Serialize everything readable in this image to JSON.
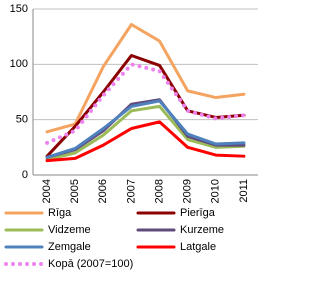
{
  "chart_data": {
    "type": "line",
    "categories": [
      "2004",
      "2005",
      "2006",
      "2007",
      "2008",
      "2009",
      "2010",
      "2011"
    ],
    "series": [
      {
        "name": "Rīga",
        "color": "#f4a460",
        "values": [
          39,
          46,
          98,
          136,
          121,
          76,
          70,
          73
        ]
      },
      {
        "name": "Pierīga",
        "color": "#8b0000",
        "values": [
          17,
          44,
          75,
          108,
          99,
          58,
          52,
          54
        ]
      },
      {
        "name": "Vidzeme",
        "color": "#9bbb59",
        "values": [
          14,
          20,
          36,
          58,
          62,
          32,
          25,
          26
        ]
      },
      {
        "name": "Kurzeme",
        "color": "#604a7b",
        "values": [
          16,
          23,
          40,
          64,
          68,
          35,
          27,
          27
        ]
      },
      {
        "name": "Zemgale",
        "color": "#4f81bd",
        "values": [
          16,
          24,
          42,
          62,
          67,
          37,
          28,
          29
        ]
      },
      {
        "name": "Latgale",
        "color": "#ff0000",
        "values": [
          13,
          15,
          27,
          42,
          48,
          25,
          18,
          17
        ]
      },
      {
        "name": "Kopā (2007=100)",
        "color": "#ee82ee",
        "line_style": "dotted",
        "values": [
          29,
          40,
          72,
          100,
          94,
          58,
          51,
          54
        ]
      }
    ],
    "ylim": [
      0,
      150
    ],
    "yticks": [
      0,
      50,
      100,
      150
    ],
    "grid": true,
    "legend": "bottom"
  }
}
